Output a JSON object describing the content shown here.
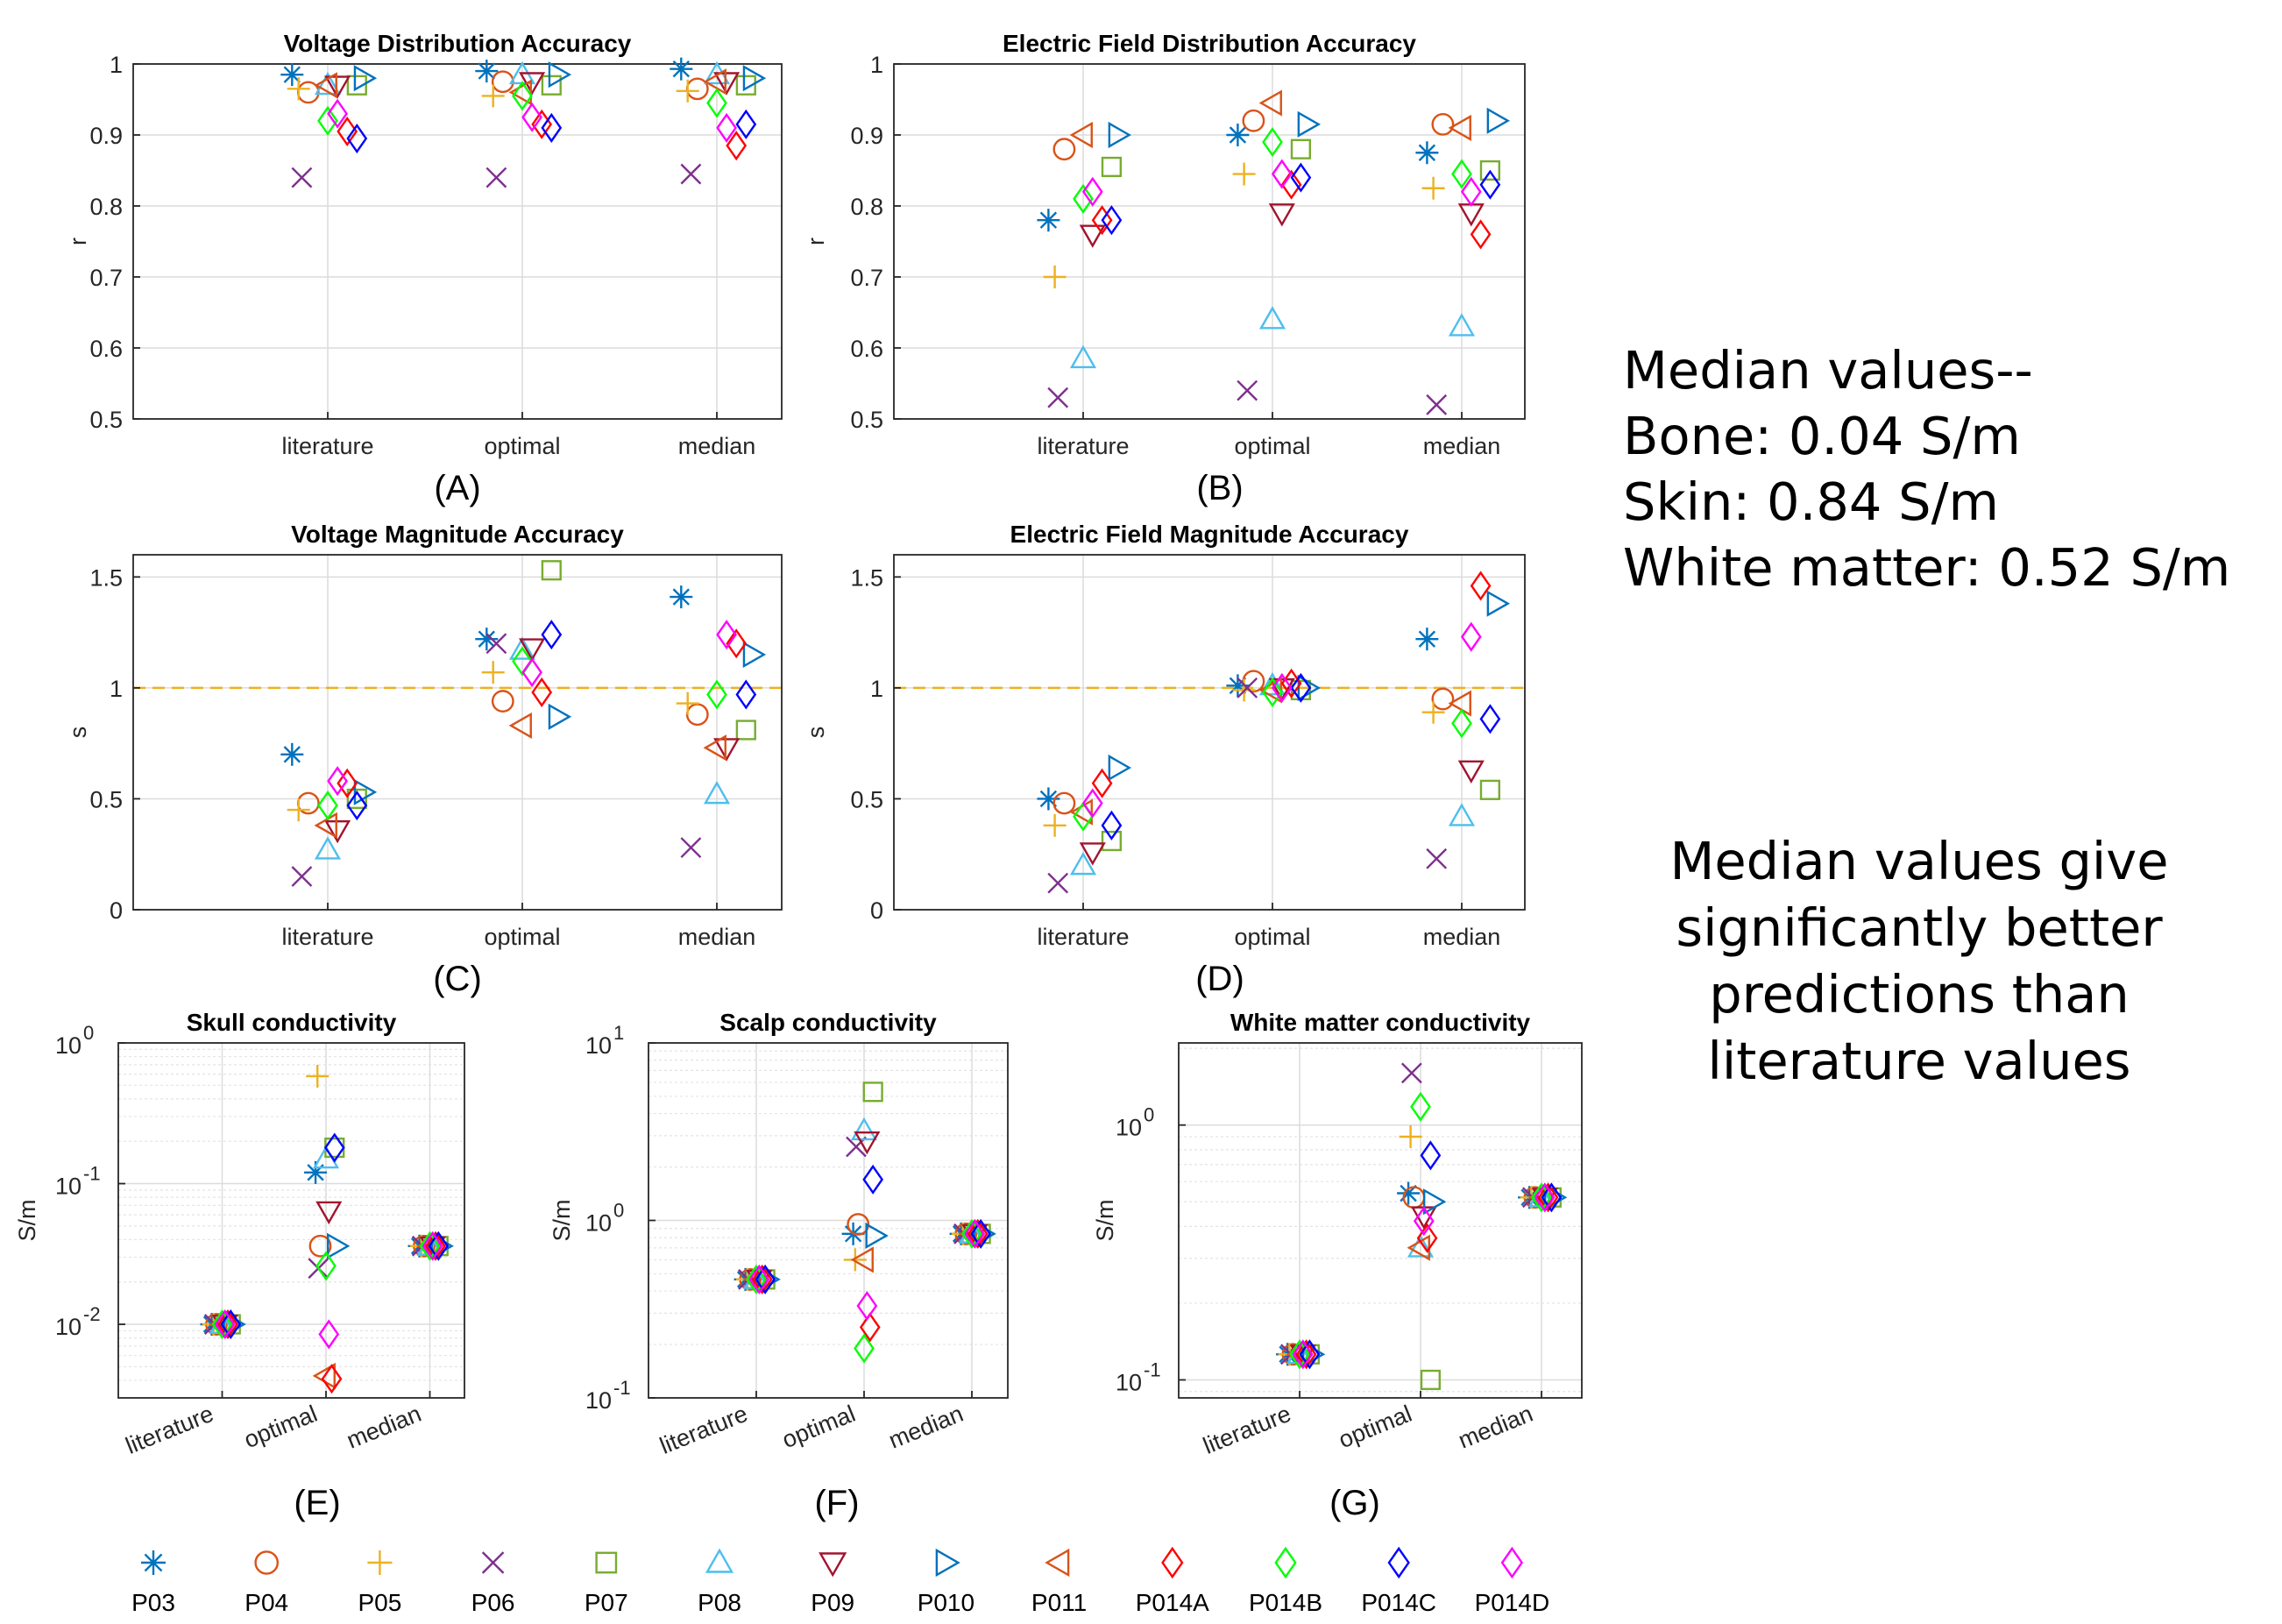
{
  "legend": {
    "participants": [
      {
        "id": "P03",
        "marker": "asterisk",
        "color": "#0072BD"
      },
      {
        "id": "P04",
        "marker": "circle",
        "color": "#D95319"
      },
      {
        "id": "P05",
        "marker": "plus",
        "color": "#EDB120"
      },
      {
        "id": "P06",
        "marker": "x",
        "color": "#7E2F8E"
      },
      {
        "id": "P07",
        "marker": "square",
        "color": "#77AC30"
      },
      {
        "id": "P08",
        "marker": "triangle-up",
        "color": "#4DBEEE"
      },
      {
        "id": "P09",
        "marker": "triangle-down",
        "color": "#A2142F"
      },
      {
        "id": "P010",
        "marker": "triangle-right",
        "color": "#0072BD"
      },
      {
        "id": "P011",
        "marker": "triangle-left",
        "color": "#D95319"
      },
      {
        "id": "P014A",
        "marker": "diamond",
        "color": "#FF0000"
      },
      {
        "id": "P014B",
        "marker": "diamond",
        "color": "#00FF00"
      },
      {
        "id": "P014C",
        "marker": "diamond",
        "color": "#0000FF"
      },
      {
        "id": "P014D",
        "marker": "diamond",
        "color": "#FF00FF"
      }
    ]
  },
  "notes": {
    "median_values": {
      "title": "Median values--",
      "bone": "Bone: 0.04 S/m",
      "skin": "Skin: 0.84 S/m",
      "white_matter": "White matter: 0.52 S/m"
    },
    "conclusion": "Median values give significantly better predictions than literature values"
  },
  "chart_data": [
    {
      "panel": "(A)",
      "type": "scatter",
      "title": "Voltage Distribution Accuracy",
      "xlabel": "",
      "ylabel": "r",
      "categories": [
        "literature",
        "optimal",
        "median"
      ],
      "ylim": [
        0.5,
        1
      ],
      "yticks": [
        0.5,
        0.6,
        0.7,
        0.8,
        0.9,
        1
      ],
      "ytick_labels": [
        "0.5",
        "0.6",
        "0.7",
        "0.8",
        "0.9",
        "1"
      ],
      "scale": "linear",
      "grid": true,
      "reference_line": null,
      "series": [
        {
          "name": "P03",
          "values": [
            0.985,
            0.99,
            0.993
          ]
        },
        {
          "name": "P04",
          "values": [
            0.96,
            0.975,
            0.965
          ]
        },
        {
          "name": "P05",
          "values": [
            0.965,
            0.955,
            0.962
          ]
        },
        {
          "name": "P06",
          "values": [
            0.84,
            0.84,
            0.845
          ]
        },
        {
          "name": "P07",
          "values": [
            0.97,
            0.97,
            0.97
          ]
        },
        {
          "name": "P08",
          "values": [
            0.97,
            0.985,
            0.985
          ]
        },
        {
          "name": "P09",
          "values": [
            0.97,
            0.975,
            0.975
          ]
        },
        {
          "name": "P010",
          "values": [
            0.98,
            0.985,
            0.98
          ]
        },
        {
          "name": "P011",
          "values": [
            0.97,
            0.96,
            0.975
          ]
        },
        {
          "name": "P014A",
          "values": [
            0.905,
            0.915,
            0.885
          ]
        },
        {
          "name": "P014B",
          "values": [
            0.92,
            0.955,
            0.945
          ]
        },
        {
          "name": "P014C",
          "values": [
            0.895,
            0.91,
            0.915
          ]
        },
        {
          "name": "P014D",
          "values": [
            0.93,
            0.925,
            0.91
          ]
        }
      ]
    },
    {
      "panel": "(B)",
      "type": "scatter",
      "title": "Electric Field Distribution Accuracy",
      "xlabel": "",
      "ylabel": "r",
      "categories": [
        "literature",
        "optimal",
        "median"
      ],
      "ylim": [
        0.5,
        1
      ],
      "yticks": [
        0.5,
        0.6,
        0.7,
        0.8,
        0.9,
        1
      ],
      "ytick_labels": [
        "0.5",
        "0.6",
        "0.7",
        "0.8",
        "0.9",
        "1"
      ],
      "scale": "linear",
      "grid": true,
      "reference_line": null,
      "series": [
        {
          "name": "P03",
          "values": [
            0.78,
            0.9,
            0.875
          ]
        },
        {
          "name": "P04",
          "values": [
            0.88,
            0.92,
            0.915
          ]
        },
        {
          "name": "P05",
          "values": [
            0.7,
            0.845,
            0.825
          ]
        },
        {
          "name": "P06",
          "values": [
            0.53,
            0.54,
            0.52
          ]
        },
        {
          "name": "P07",
          "values": [
            0.855,
            0.88,
            0.85
          ]
        },
        {
          "name": "P08",
          "values": [
            0.585,
            0.64,
            0.63
          ]
        },
        {
          "name": "P09",
          "values": [
            0.76,
            0.79,
            0.79
          ]
        },
        {
          "name": "P010",
          "values": [
            0.9,
            0.915,
            0.92
          ]
        },
        {
          "name": "P011",
          "values": [
            0.9,
            0.945,
            0.91
          ]
        },
        {
          "name": "P014A",
          "values": [
            0.78,
            0.83,
            0.76
          ]
        },
        {
          "name": "P014B",
          "values": [
            0.81,
            0.89,
            0.845
          ]
        },
        {
          "name": "P014C",
          "values": [
            0.78,
            0.84,
            0.83
          ]
        },
        {
          "name": "P014D",
          "values": [
            0.82,
            0.845,
            0.82
          ]
        }
      ]
    },
    {
      "panel": "(C)",
      "type": "scatter",
      "title": "Voltage Magnitude Accuracy",
      "xlabel": "",
      "ylabel": "s",
      "categories": [
        "literature",
        "optimal",
        "median"
      ],
      "ylim": [
        0,
        1.6
      ],
      "yticks": [
        0,
        0.5,
        1,
        1.5
      ],
      "ytick_labels": [
        "0",
        "0.5",
        "1",
        "1.5"
      ],
      "scale": "linear",
      "grid": true,
      "reference_line": 1,
      "series": [
        {
          "name": "P03",
          "values": [
            0.7,
            1.22,
            1.41
          ]
        },
        {
          "name": "P04",
          "values": [
            0.48,
            0.94,
            0.88
          ]
        },
        {
          "name": "P05",
          "values": [
            0.45,
            1.07,
            0.93
          ]
        },
        {
          "name": "P06",
          "values": [
            0.15,
            1.2,
            0.28
          ]
        },
        {
          "name": "P07",
          "values": [
            0.5,
            1.53,
            0.81
          ]
        },
        {
          "name": "P08",
          "values": [
            0.27,
            1.17,
            0.52
          ]
        },
        {
          "name": "P09",
          "values": [
            0.36,
            1.18,
            0.73
          ]
        },
        {
          "name": "P010",
          "values": [
            0.53,
            0.87,
            1.15
          ]
        },
        {
          "name": "P011",
          "values": [
            0.38,
            0.83,
            0.73
          ]
        },
        {
          "name": "P014A",
          "values": [
            0.57,
            0.98,
            1.2
          ]
        },
        {
          "name": "P014B",
          "values": [
            0.47,
            1.12,
            0.97
          ]
        },
        {
          "name": "P014C",
          "values": [
            0.47,
            1.24,
            0.97
          ]
        },
        {
          "name": "P014D",
          "values": [
            0.58,
            1.07,
            1.24
          ]
        }
      ]
    },
    {
      "panel": "(D)",
      "type": "scatter",
      "title": "Electric Field Magnitude Accuracy",
      "xlabel": "",
      "ylabel": "s",
      "categories": [
        "literature",
        "optimal",
        "median"
      ],
      "ylim": [
        0,
        1.6
      ],
      "yticks": [
        0,
        0.5,
        1,
        1.5
      ],
      "ytick_labels": [
        "0",
        "0.5",
        "1",
        "1.5"
      ],
      "scale": "linear",
      "grid": true,
      "reference_line": 1,
      "series": [
        {
          "name": "P03",
          "values": [
            0.5,
            1.01,
            1.22
          ]
        },
        {
          "name": "P04",
          "values": [
            0.48,
            1.03,
            0.95
          ]
        },
        {
          "name": "P05",
          "values": [
            0.38,
            0.99,
            0.89
          ]
        },
        {
          "name": "P06",
          "values": [
            0.12,
            1.0,
            0.23
          ]
        },
        {
          "name": "P07",
          "values": [
            0.31,
            0.99,
            0.54
          ]
        },
        {
          "name": "P08",
          "values": [
            0.2,
            1.01,
            0.42
          ]
        },
        {
          "name": "P09",
          "values": [
            0.26,
            1.0,
            0.63
          ]
        },
        {
          "name": "P010",
          "values": [
            0.64,
            1.0,
            1.38
          ]
        },
        {
          "name": "P011",
          "values": [
            0.44,
            0.99,
            0.93
          ]
        },
        {
          "name": "P014A",
          "values": [
            0.57,
            1.02,
            1.46
          ]
        },
        {
          "name": "P014B",
          "values": [
            0.42,
            0.98,
            0.84
          ]
        },
        {
          "name": "P014C",
          "values": [
            0.38,
            1.0,
            0.86
          ]
        },
        {
          "name": "P014D",
          "values": [
            0.48,
            1.0,
            1.23
          ]
        }
      ]
    },
    {
      "panel": "(E)",
      "type": "scatter",
      "title": "Skull conductivity",
      "xlabel": "",
      "ylabel": "S/m",
      "categories": [
        "literature",
        "optimal",
        "median"
      ],
      "ylim": [
        0.003,
        1
      ],
      "yticks": [
        0.01,
        0.1,
        1
      ],
      "ytick_labels": [
        {
          "base": "10",
          "exp": "-2"
        },
        {
          "base": "10",
          "exp": "-1"
        },
        {
          "base": "10",
          "exp": "0"
        }
      ],
      "scale": "log",
      "grid": true,
      "reference_line": null,
      "series": [
        {
          "name": "P03",
          "values": [
            0.01,
            0.12,
            0.036
          ]
        },
        {
          "name": "P04",
          "values": [
            0.01,
            0.036,
            0.036
          ]
        },
        {
          "name": "P05",
          "values": [
            0.01,
            0.58,
            0.036
          ]
        },
        {
          "name": "P06",
          "values": [
            0.01,
            0.025,
            0.036
          ]
        },
        {
          "name": "P07",
          "values": [
            0.01,
            0.18,
            0.036
          ]
        },
        {
          "name": "P08",
          "values": [
            0.01,
            0.15,
            0.036
          ]
        },
        {
          "name": "P09",
          "values": [
            0.01,
            0.064,
            0.036
          ]
        },
        {
          "name": "P010",
          "values": [
            0.01,
            0.036,
            0.036
          ]
        },
        {
          "name": "P011",
          "values": [
            0.01,
            0.0043,
            0.036
          ]
        },
        {
          "name": "P014A",
          "values": [
            0.01,
            0.0041,
            0.036
          ]
        },
        {
          "name": "P014B",
          "values": [
            0.01,
            0.026,
            0.036
          ]
        },
        {
          "name": "P014C",
          "values": [
            0.01,
            0.18,
            0.036
          ]
        },
        {
          "name": "P014D",
          "values": [
            0.01,
            0.0085,
            0.036
          ]
        }
      ]
    },
    {
      "panel": "(F)",
      "type": "scatter",
      "title": "Scalp conductivity",
      "xlabel": "",
      "ylabel": "S/m",
      "categories": [
        "literature",
        "optimal",
        "median"
      ],
      "ylim": [
        0.1,
        10
      ],
      "yticks": [
        0.1,
        1,
        10
      ],
      "ytick_labels": [
        {
          "base": "10",
          "exp": "-1"
        },
        {
          "base": "10",
          "exp": "0"
        },
        {
          "base": "10",
          "exp": "1"
        }
      ],
      "scale": "log",
      "grid": true,
      "reference_line": null,
      "series": [
        {
          "name": "P03",
          "values": [
            0.465,
            0.84,
            0.84
          ]
        },
        {
          "name": "P04",
          "values": [
            0.465,
            0.95,
            0.84
          ]
        },
        {
          "name": "P05",
          "values": [
            0.465,
            0.6,
            0.84
          ]
        },
        {
          "name": "P06",
          "values": [
            0.465,
            2.6,
            0.84
          ]
        },
        {
          "name": "P07",
          "values": [
            0.465,
            5.3,
            0.84
          ]
        },
        {
          "name": "P08",
          "values": [
            0.465,
            3.2,
            0.84
          ]
        },
        {
          "name": "P09",
          "values": [
            0.465,
            2.8,
            0.84
          ]
        },
        {
          "name": "P010",
          "values": [
            0.465,
            0.82,
            0.84
          ]
        },
        {
          "name": "P011",
          "values": [
            0.465,
            0.6,
            0.84
          ]
        },
        {
          "name": "P014A",
          "values": [
            0.465,
            0.25,
            0.84
          ]
        },
        {
          "name": "P014B",
          "values": [
            0.465,
            0.19,
            0.84
          ]
        },
        {
          "name": "P014C",
          "values": [
            0.465,
            1.7,
            0.84
          ]
        },
        {
          "name": "P014D",
          "values": [
            0.465,
            0.33,
            0.84
          ]
        }
      ]
    },
    {
      "panel": "(G)",
      "type": "scatter",
      "title": "White matter conductivity",
      "xlabel": "",
      "ylabel": "S/m",
      "categories": [
        "literature",
        "optimal",
        "median"
      ],
      "ylim": [
        0.085,
        2.1
      ],
      "yticks": [
        0.1,
        1
      ],
      "ytick_labels": [
        {
          "base": "10",
          "exp": "-1"
        },
        {
          "base": "10",
          "exp": "0"
        }
      ],
      "scale": "log",
      "grid": true,
      "reference_line": null,
      "series": [
        {
          "name": "P03",
          "values": [
            0.126,
            0.54,
            0.52
          ]
        },
        {
          "name": "P04",
          "values": [
            0.126,
            0.52,
            0.52
          ]
        },
        {
          "name": "P05",
          "values": [
            0.126,
            0.9,
            0.52
          ]
        },
        {
          "name": "P06",
          "values": [
            0.126,
            1.6,
            0.52
          ]
        },
        {
          "name": "P07",
          "values": [
            0.126,
            0.1,
            0.52
          ]
        },
        {
          "name": "P08",
          "values": [
            0.126,
            0.33,
            0.52
          ]
        },
        {
          "name": "P09",
          "values": [
            0.126,
            0.44,
            0.52
          ]
        },
        {
          "name": "P010",
          "values": [
            0.126,
            0.5,
            0.52
          ]
        },
        {
          "name": "P011",
          "values": [
            0.126,
            0.33,
            0.52
          ]
        },
        {
          "name": "P014A",
          "values": [
            0.126,
            0.36,
            0.52
          ]
        },
        {
          "name": "P014B",
          "values": [
            0.126,
            1.18,
            0.52
          ]
        },
        {
          "name": "P014C",
          "values": [
            0.126,
            0.76,
            0.52
          ]
        },
        {
          "name": "P014D",
          "values": [
            0.126,
            0.42,
            0.52
          ]
        }
      ]
    }
  ]
}
